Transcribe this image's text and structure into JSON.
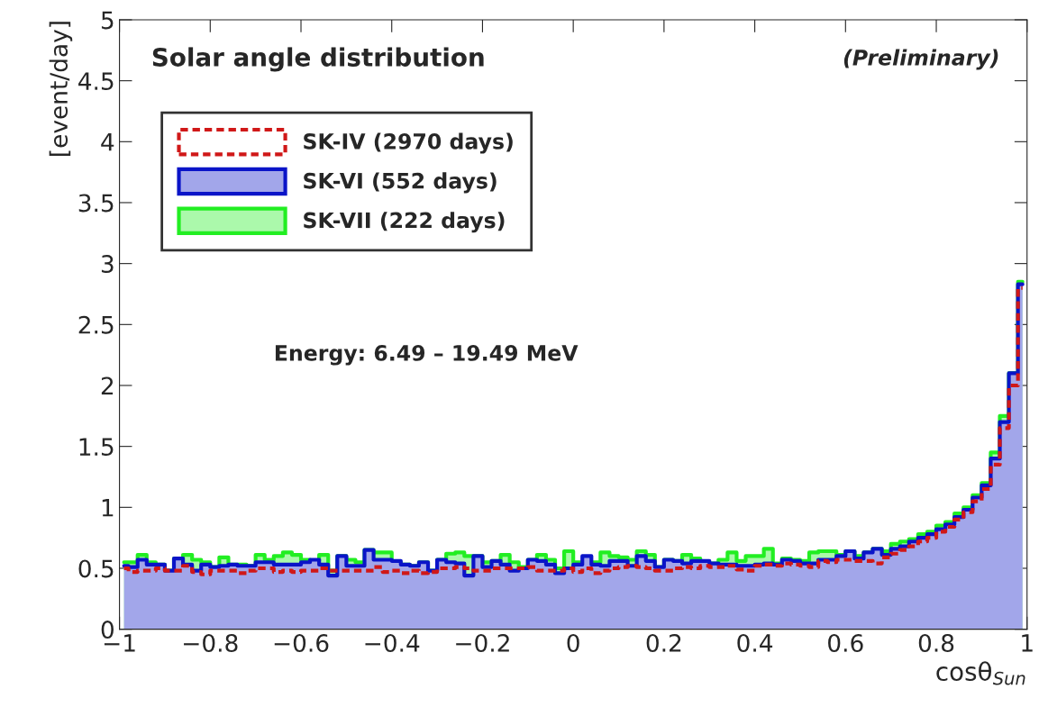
{
  "chart_data": {
    "type": "step",
    "title": "Solar angle distribution",
    "xlabel": "cosθ$_{Sun}$",
    "ylabel": "[event/day]",
    "annotations": [
      "(Preliminary)",
      "Energy: 6.49 – 19.49 MeV"
    ],
    "x": [
      -0.99,
      -0.97,
      -0.95,
      -0.93,
      -0.91,
      -0.89,
      -0.87,
      -0.85,
      -0.83,
      -0.81,
      -0.79,
      -0.77,
      -0.75,
      -0.73,
      -0.71,
      -0.69,
      -0.67,
      -0.65,
      -0.63,
      -0.61,
      -0.59,
      -0.57,
      -0.55,
      -0.53,
      -0.51,
      -0.49,
      -0.47,
      -0.45,
      -0.43,
      -0.41,
      -0.39,
      -0.37,
      -0.35,
      -0.33,
      -0.31,
      -0.29,
      -0.27,
      -0.25,
      -0.23,
      -0.21,
      -0.19,
      -0.17,
      -0.15,
      -0.13,
      -0.11,
      -0.09,
      -0.07,
      -0.05,
      -0.03,
      -0.01,
      0.01,
      0.03,
      0.05,
      0.07,
      0.09,
      0.11,
      0.13,
      0.15,
      0.17,
      0.19,
      0.21,
      0.23,
      0.25,
      0.27,
      0.29,
      0.31,
      0.33,
      0.35,
      0.37,
      0.39,
      0.41,
      0.43,
      0.45,
      0.47,
      0.49,
      0.51,
      0.53,
      0.55,
      0.57,
      0.59,
      0.61,
      0.63,
      0.65,
      0.67,
      0.69,
      0.71,
      0.73,
      0.75,
      0.77,
      0.79,
      0.81,
      0.83,
      0.85,
      0.87,
      0.89,
      0.91,
      0.93,
      0.95,
      0.97,
      0.99
    ],
    "series": [
      {
        "name": "SK-VII (222 days)",
        "type": "area",
        "color": "#22ee22",
        "values": [
          0.55,
          0.55,
          0.61,
          0.55,
          0.53,
          0.48,
          0.58,
          0.61,
          0.57,
          0.55,
          0.51,
          0.59,
          0.53,
          0.53,
          0.52,
          0.61,
          0.57,
          0.6,
          0.63,
          0.61,
          0.57,
          0.56,
          0.61,
          0.48,
          0.6,
          0.57,
          0.55,
          0.65,
          0.63,
          0.63,
          0.55,
          0.53,
          0.52,
          0.55,
          0.48,
          0.57,
          0.62,
          0.63,
          0.6,
          0.6,
          0.55,
          0.56,
          0.61,
          0.55,
          0.51,
          0.57,
          0.61,
          0.57,
          0.5,
          0.64,
          0.55,
          0.53,
          0.55,
          0.63,
          0.6,
          0.59,
          0.57,
          0.64,
          0.61,
          0.51,
          0.57,
          0.56,
          0.61,
          0.58,
          0.54,
          0.54,
          0.57,
          0.63,
          0.56,
          0.6,
          0.6,
          0.66,
          0.54,
          0.58,
          0.57,
          0.56,
          0.63,
          0.64,
          0.64,
          0.61,
          0.64,
          0.6,
          0.63,
          0.66,
          0.64,
          0.7,
          0.72,
          0.74,
          0.78,
          0.8,
          0.85,
          0.88,
          0.95,
          1.0,
          1.1,
          1.2,
          1.45,
          1.75,
          2.1,
          2.85
        ]
      },
      {
        "name": "SK-VI (552 days)",
        "type": "area",
        "color": "#0a14c8",
        "values": [
          0.52,
          0.51,
          0.57,
          0.53,
          0.53,
          0.48,
          0.58,
          0.53,
          0.48,
          0.53,
          0.51,
          0.52,
          0.53,
          0.52,
          0.52,
          0.55,
          0.55,
          0.53,
          0.53,
          0.53,
          0.55,
          0.57,
          0.53,
          0.44,
          0.6,
          0.52,
          0.52,
          0.65,
          0.57,
          0.57,
          0.56,
          0.53,
          0.52,
          0.55,
          0.48,
          0.57,
          0.55,
          0.54,
          0.44,
          0.6,
          0.51,
          0.56,
          0.53,
          0.48,
          0.5,
          0.57,
          0.56,
          0.53,
          0.46,
          0.5,
          0.53,
          0.6,
          0.53,
          0.52,
          0.56,
          0.56,
          0.52,
          0.6,
          0.56,
          0.51,
          0.57,
          0.56,
          0.54,
          0.56,
          0.56,
          0.54,
          0.53,
          0.53,
          0.52,
          0.52,
          0.53,
          0.54,
          0.53,
          0.57,
          0.56,
          0.54,
          0.54,
          0.57,
          0.57,
          0.6,
          0.64,
          0.58,
          0.63,
          0.66,
          0.61,
          0.66,
          0.68,
          0.72,
          0.75,
          0.78,
          0.82,
          0.86,
          0.92,
          0.98,
          1.08,
          1.18,
          1.4,
          1.7,
          2.1,
          2.83
        ]
      },
      {
        "name": "SK-IV (2970 days)",
        "line_style": "dashed",
        "color": "#d01818",
        "values": [
          0.5,
          0.47,
          0.48,
          0.48,
          0.5,
          0.48,
          0.48,
          0.52,
          0.47,
          0.45,
          0.48,
          0.48,
          0.48,
          0.46,
          0.48,
          0.5,
          0.5,
          0.47,
          0.48,
          0.47,
          0.48,
          0.48,
          0.5,
          0.48,
          0.48,
          0.48,
          0.48,
          0.48,
          0.51,
          0.47,
          0.48,
          0.46,
          0.48,
          0.46,
          0.47,
          0.5,
          0.5,
          0.51,
          0.5,
          0.48,
          0.48,
          0.5,
          0.5,
          0.5,
          0.5,
          0.51,
          0.48,
          0.48,
          0.48,
          0.5,
          0.47,
          0.5,
          0.46,
          0.48,
          0.5,
          0.51,
          0.52,
          0.51,
          0.5,
          0.48,
          0.48,
          0.5,
          0.51,
          0.5,
          0.52,
          0.51,
          0.51,
          0.52,
          0.49,
          0.48,
          0.52,
          0.53,
          0.52,
          0.54,
          0.53,
          0.52,
          0.51,
          0.56,
          0.55,
          0.57,
          0.57,
          0.56,
          0.56,
          0.54,
          0.59,
          0.62,
          0.65,
          0.68,
          0.72,
          0.75,
          0.8,
          0.84,
          0.9,
          0.96,
          1.05,
          1.15,
          1.35,
          1.65,
          2.0,
          2.8
        ]
      }
    ],
    "xlim": [
      -1,
      1
    ],
    "ylim": [
      0,
      5
    ],
    "xticks": [
      {
        "value": -1,
        "label": "−1"
      },
      {
        "value": -0.8,
        "label": "−0.8"
      },
      {
        "value": -0.6,
        "label": "−0.6"
      },
      {
        "value": -0.4,
        "label": "−0.4"
      },
      {
        "value": -0.2,
        "label": "−0.2"
      },
      0,
      0.2,
      0.4,
      0.6,
      0.8,
      1
    ],
    "yticks": [
      0,
      0.5,
      1,
      1.5,
      2,
      2.5,
      3,
      3.5,
      4,
      4.5,
      5
    ],
    "legend": "top left",
    "grid": false
  }
}
